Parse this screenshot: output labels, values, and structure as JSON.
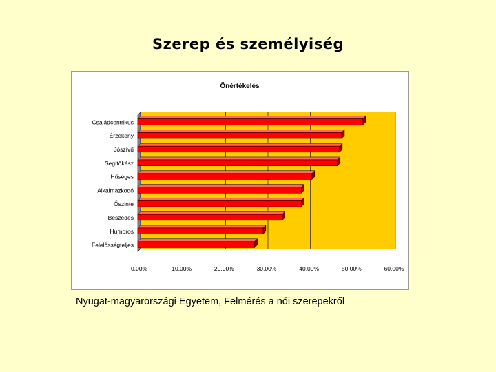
{
  "slide": {
    "title": "Szerep és személyiség",
    "caption": "Nyugat-magyarországi Egyetem, Felmérés a női szerepekről"
  },
  "colors": {
    "background": "#ffffcc",
    "plot_area": "#ffcc00",
    "bar": "#ff0000",
    "bar_edge": "#000000"
  },
  "chart_data": {
    "type": "bar",
    "orientation": "horizontal",
    "title": "Önértékelés",
    "categories": [
      "Családcentrikus",
      "Érzékeny",
      "Jószívű",
      "Segítőkész",
      "Hűséges",
      "Alkalmazkodó",
      "Őszinte",
      "Beszédes",
      "Humoros",
      "Felelősségteljes"
    ],
    "values": [
      53,
      48,
      47.5,
      47,
      41,
      38.5,
      38.5,
      34,
      29.5,
      27.5
    ],
    "xlim": [
      0,
      60
    ],
    "xticks": [
      "0,00%",
      "10,00%",
      "20,00%",
      "30,00%",
      "40,00%",
      "50,00%",
      "60,00%"
    ],
    "xtick_values": [
      0,
      10,
      20,
      30,
      40,
      50,
      60
    ],
    "value_unit": "percent",
    "grid": "vertical",
    "legend": "none"
  }
}
